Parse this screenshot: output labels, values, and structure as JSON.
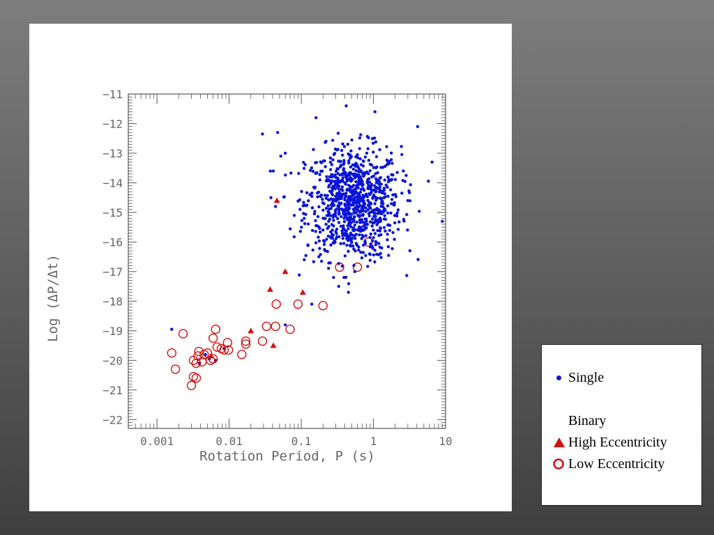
{
  "colors": {
    "single": "#0a14d6",
    "binary": "#d40f0f",
    "axis": "#555555",
    "label": "#666666"
  },
  "legend": {
    "single_label": "Single",
    "binary_heading": "Binary",
    "high_ecc_label": "High Eccentricity",
    "low_ecc_label": "Low Eccentricity",
    "single_icon": "filled-dot",
    "high_ecc_icon": "filled-triangle",
    "low_ecc_icon": "open-circle"
  },
  "chart_data": {
    "type": "scatter",
    "xlabel": "Rotation Period, P (s)",
    "ylabel": "Log (ΔP/Δt)",
    "x_scale": "log",
    "xlim": [
      0.0004,
      10
    ],
    "ylim": [
      -22.3,
      -11
    ],
    "x_ticks": [
      0.001,
      0.01,
      0.1,
      1,
      10
    ],
    "x_tick_labels": [
      "0.001",
      "0.01",
      "0.1",
      "1",
      "10"
    ],
    "y_ticks": [
      -11,
      -12,
      -13,
      -14,
      -15,
      -16,
      -17,
      -18,
      -19,
      -20,
      -21,
      -22
    ],
    "y_tick_labels": [
      "−11",
      "−12",
      "−13",
      "−14",
      "−15",
      "−16",
      "−17",
      "−18",
      "−19",
      "−20",
      "−21",
      "−22"
    ],
    "grid": false,
    "series": [
      {
        "name": "Single",
        "marker": "dot",
        "points": [
          [
            0.0016,
            -18.95
          ],
          [
            0.0047,
            -19.8
          ],
          [
            0.0053,
            -19.95
          ],
          [
            0.0065,
            -20.0
          ],
          [
            0.0085,
            -19.6
          ],
          [
            0.0039,
            -20.1
          ],
          [
            0.029,
            -12.35
          ],
          [
            0.041,
            -13.6
          ],
          [
            0.047,
            -12.3
          ],
          [
            0.038,
            -14.5
          ],
          [
            0.044,
            -14.8
          ],
          [
            0.052,
            -13.1
          ],
          [
            0.06,
            -18.8
          ],
          [
            0.14,
            -18.1
          ],
          [
            0.16,
            -11.8
          ],
          [
            0.22,
            -12.6
          ],
          [
            0.42,
            -11.4
          ],
          [
            1.05,
            -11.6
          ],
          [
            4.1,
            -12.1
          ],
          [
            6.5,
            -13.3
          ],
          [
            9.0,
            -15.3
          ],
          [
            3.0,
            -14.6
          ],
          [
            2.6,
            -13.6
          ],
          [
            0.45,
            -17.7
          ],
          [
            0.28,
            -17.2
          ],
          [
            0.33,
            -17.5
          ],
          [
            1.3,
            -16.2
          ],
          [
            0.11,
            -16.6
          ],
          [
            0.06,
            -13.0
          ],
          [
            0.08,
            -15.1
          ],
          [
            0.5,
            -14.3
          ],
          [
            0.6,
            -14.6
          ],
          [
            0.7,
            -14.1
          ],
          [
            0.4,
            -14.9
          ],
          [
            0.8,
            -15.3
          ],
          [
            0.55,
            -13.7
          ]
        ]
      },
      {
        "name": "High Eccentricity",
        "marker": "triangle",
        "points": [
          [
            0.046,
            -14.6
          ],
          [
            0.06,
            -17.0
          ],
          [
            0.037,
            -17.6
          ],
          [
            0.105,
            -17.7
          ],
          [
            0.02,
            -19.0
          ],
          [
            0.041,
            -19.5
          ],
          [
            0.0056,
            -19.85
          ]
        ]
      },
      {
        "name": "Low Eccentricity",
        "marker": "open-circle",
        "points": [
          [
            0.0016,
            -19.75
          ],
          [
            0.0018,
            -20.3
          ],
          [
            0.0023,
            -19.1
          ],
          [
            0.003,
            -20.85
          ],
          [
            0.0032,
            -20.55
          ],
          [
            0.0035,
            -20.6
          ],
          [
            0.0032,
            -20.0
          ],
          [
            0.0035,
            -20.1
          ],
          [
            0.0038,
            -19.7
          ],
          [
            0.0037,
            -19.85
          ],
          [
            0.0042,
            -20.05
          ],
          [
            0.0045,
            -19.8
          ],
          [
            0.005,
            -19.75
          ],
          [
            0.0055,
            -20.0
          ],
          [
            0.006,
            -19.95
          ],
          [
            0.006,
            -19.25
          ],
          [
            0.0065,
            -18.95
          ],
          [
            0.0068,
            -19.55
          ],
          [
            0.0078,
            -19.6
          ],
          [
            0.0085,
            -19.65
          ],
          [
            0.0095,
            -19.4
          ],
          [
            0.0098,
            -19.65
          ],
          [
            0.015,
            -19.8
          ],
          [
            0.017,
            -19.45
          ],
          [
            0.017,
            -19.35
          ],
          [
            0.029,
            -19.35
          ],
          [
            0.033,
            -18.85
          ],
          [
            0.044,
            -18.85
          ],
          [
            0.045,
            -18.1
          ],
          [
            0.07,
            -18.95
          ],
          [
            0.09,
            -18.1
          ],
          [
            0.2,
            -18.15
          ],
          [
            0.34,
            -16.85
          ],
          [
            0.6,
            -16.85
          ],
          [
            0.85,
            -16.0
          ]
        ]
      }
    ]
  }
}
